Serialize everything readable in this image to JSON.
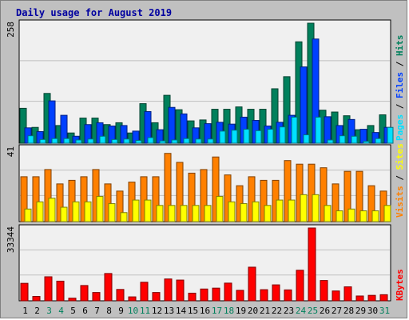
{
  "chart_data": [
    {
      "type": "bar",
      "title": "Daily usage for August 2019",
      "panel": "hits-files-pages",
      "ymax_label": "258",
      "ylim": [
        0,
        258
      ],
      "categories": [
        "1",
        "2",
        "3",
        "4",
        "5",
        "6",
        "7",
        "8",
        "9",
        "10",
        "11",
        "12",
        "13",
        "14",
        "15",
        "16",
        "17",
        "18",
        "19",
        "20",
        "21",
        "22",
        "23",
        "24",
        "25",
        "26",
        "27",
        "28",
        "29",
        "30",
        "31"
      ],
      "weekend_days": [
        "3",
        "4",
        "10",
        "11",
        "17",
        "18",
        "24",
        "25",
        "31"
      ],
      "series": [
        {
          "name": "Hits",
          "color": "#00805c",
          "values": [
            75,
            34,
            107,
            38,
            22,
            54,
            54,
            40,
            44,
            22,
            85,
            44,
            103,
            72,
            48,
            50,
            73,
            73,
            78,
            73,
            73,
            117,
            143,
            218,
            258,
            71,
            67,
            59,
            29,
            38,
            61
          ]
        },
        {
          "name": "Files",
          "color": "#0040ff",
          "values": [
            33,
            25,
            91,
            60,
            15,
            40,
            44,
            37,
            38,
            26,
            68,
            29,
            77,
            63,
            33,
            42,
            45,
            41,
            56,
            49,
            37,
            45,
            60,
            164,
            224,
            57,
            38,
            51,
            30,
            23,
            34
          ]
        },
        {
          "name": "Pages",
          "color": "#00e0ff",
          "values": [
            16,
            8,
            10,
            10,
            7,
            9,
            15,
            8,
            9,
            6,
            12,
            5,
            7,
            10,
            9,
            9,
            26,
            28,
            30,
            27,
            30,
            35,
            56,
            18,
            56,
            7,
            16,
            15,
            4,
            10,
            34
          ]
        }
      ]
    },
    {
      "type": "bar",
      "panel": "visits-sites",
      "ymax_label": "41",
      "ylim": [
        0,
        41
      ],
      "categories": [
        "1",
        "2",
        "3",
        "4",
        "5",
        "6",
        "7",
        "8",
        "9",
        "10",
        "11",
        "12",
        "13",
        "14",
        "15",
        "16",
        "17",
        "18",
        "19",
        "20",
        "21",
        "22",
        "23",
        "24",
        "25",
        "26",
        "27",
        "28",
        "29",
        "30",
        "31"
      ],
      "series": [
        {
          "name": "Visits",
          "color": "#ff8000",
          "values": [
            25,
            25,
            29,
            21,
            23,
            25,
            29,
            21,
            17,
            22,
            25,
            25,
            38,
            33,
            27,
            29,
            36,
            26,
            20,
            25,
            23,
            23,
            34,
            32,
            32,
            30,
            21,
            28,
            28,
            20,
            17
          ]
        },
        {
          "name": "Sites",
          "color": "#ffff00",
          "values": [
            7,
            11,
            13,
            8,
            11,
            11,
            14,
            10,
            5,
            12,
            12,
            9,
            9,
            9,
            9,
            9,
            14,
            11,
            10,
            11,
            9,
            12,
            12,
            15,
            15,
            9,
            6,
            7,
            6,
            6,
            9
          ]
        }
      ]
    },
    {
      "type": "bar",
      "panel": "kbytes",
      "ymax_label": "33344",
      "ylim": [
        0,
        33344
      ],
      "categories": [
        "1",
        "2",
        "3",
        "4",
        "5",
        "6",
        "7",
        "8",
        "9",
        "10",
        "11",
        "12",
        "13",
        "14",
        "15",
        "16",
        "17",
        "18",
        "19",
        "20",
        "21",
        "22",
        "23",
        "24",
        "25",
        "26",
        "27",
        "28",
        "29",
        "30",
        "31"
      ],
      "series": [
        {
          "name": "KBytes",
          "color": "#ff0000",
          "values": [
            8000,
            2000,
            11000,
            9000,
            1200,
            7000,
            3800,
            12500,
            5200,
            1800,
            8500,
            3800,
            10000,
            9500,
            3500,
            5400,
            5800,
            8100,
            4800,
            15400,
            5100,
            7300,
            5000,
            14000,
            33344,
            9300,
            4500,
            6400,
            2200,
            2500,
            2800
          ]
        }
      ]
    }
  ]
}
